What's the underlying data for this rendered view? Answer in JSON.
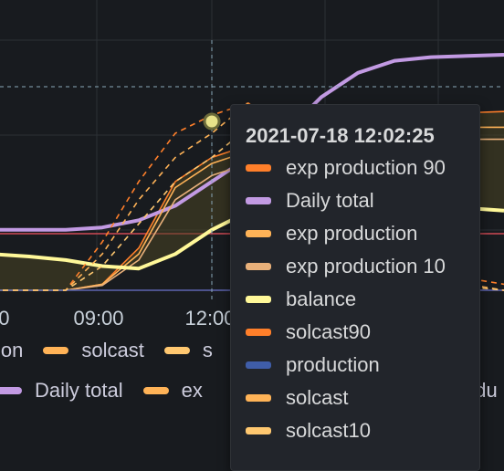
{
  "chart_data": {
    "type": "line",
    "x_ticks": [
      "09:00",
      "12:00"
    ],
    "series": [
      {
        "name": "exp production 90",
        "color": "#ff7f2a",
        "y": [
          0,
          0,
          0,
          0.05,
          0.35,
          0.9,
          1.1,
          1.2,
          1.15,
          1.1,
          1.25,
          1.4,
          1.45,
          1.47,
          1.48
        ]
      },
      {
        "name": "Daily total",
        "color": "#c29ae3",
        "y": [
          0.5,
          0.5,
          0.5,
          0.52,
          0.58,
          0.7,
          0.9,
          1.1,
          1.3,
          1.6,
          1.8,
          1.9,
          1.93,
          1.94,
          1.95
        ]
      },
      {
        "name": "exp production",
        "color": "#ffb357",
        "y": [
          0,
          0,
          0,
          0.05,
          0.3,
          0.85,
          1.05,
          1.15,
          1.1,
          1.05,
          1.2,
          1.3,
          1.35,
          1.35,
          1.35
        ]
      },
      {
        "name": "exp production 10",
        "color": "#e8b07a",
        "y": [
          0,
          0,
          0,
          0.04,
          0.25,
          0.75,
          0.95,
          1.05,
          1.0,
          0.95,
          1.1,
          1.2,
          1.25,
          1.25,
          1.25
        ]
      },
      {
        "name": "balance",
        "color": "#fff899",
        "y": [
          0.3,
          0.28,
          0.25,
          0.2,
          0.18,
          0.3,
          0.5,
          0.65,
          0.75,
          0.8,
          0.78,
          0.72,
          0.7,
          0.68,
          0.66
        ]
      },
      {
        "name": "solcast90",
        "color": "#ff7f2a",
        "y": [
          0,
          0,
          0,
          0.4,
          0.9,
          1.3,
          1.45,
          1.55,
          1.3,
          0.9,
          0.6,
          0.4,
          0.25,
          0.1,
          0.05
        ]
      },
      {
        "name": "production",
        "color": "#3f5da8",
        "y": [
          0,
          0,
          0,
          0,
          0,
          0,
          0,
          0,
          0,
          0,
          0,
          0,
          0,
          0,
          0
        ]
      },
      {
        "name": "solcast",
        "color": "#ffb357",
        "y": [
          0,
          0,
          0,
          0.3,
          0.75,
          1.1,
          1.3,
          1.55,
          1.2,
          0.8,
          0.5,
          0.3,
          0.15,
          0.05,
          0
        ]
      },
      {
        "name": "solcast10",
        "color": "#ffc870",
        "y": [
          0,
          0,
          0,
          0.2,
          0.55,
          0.9,
          1.1,
          1.35,
          1.05,
          0.7,
          0.4,
          0.25,
          0.1,
          0.03,
          0
        ]
      }
    ],
    "crosshair_value_label": "2021-07-18 12:02:25"
  },
  "legend": {
    "row1": [
      {
        "label": "ion",
        "color": "#3f5da8"
      },
      {
        "label": "solcast",
        "color": "#ffb357"
      },
      {
        "label": "s",
        "color": "#ffc870"
      }
    ],
    "row2": [
      {
        "label": "Daily total",
        "color": "#c29ae3"
      },
      {
        "label": "ex",
        "color": "#ffb357"
      }
    ],
    "row2_right": "odu"
  },
  "tooltip": {
    "time": "2021-07-18 12:02:25",
    "rows": [
      {
        "label": "exp production 90",
        "color": "#ff7f2a"
      },
      {
        "label": "Daily total",
        "color": "#c29ae3"
      },
      {
        "label": "exp production",
        "color": "#ffb357"
      },
      {
        "label": "exp production 10",
        "color": "#e8b07a"
      },
      {
        "label": "balance",
        "color": "#fff899"
      },
      {
        "label": "solcast90",
        "color": "#ff7f2a"
      },
      {
        "label": "production",
        "color": "#3f5da8"
      },
      {
        "label": "solcast",
        "color": "#ffb357"
      },
      {
        "label": "solcast10",
        "color": "#ffc870"
      }
    ]
  }
}
